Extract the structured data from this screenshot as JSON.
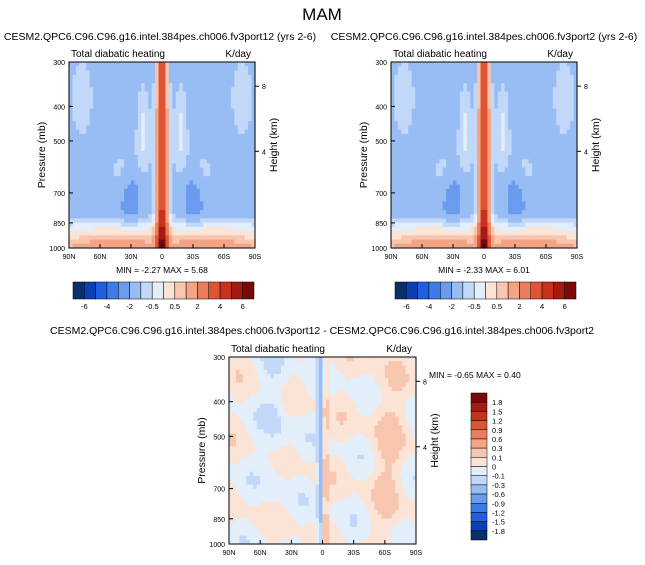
{
  "page": {
    "title": "MAM"
  },
  "colors": {
    "frame": "#000000",
    "ramp_full": [
      "#08306b",
      "#0d3fb4",
      "#1f5fe0",
      "#3d7be8",
      "#6a9bee",
      "#98bcf4",
      "#c2d8f8",
      "#e3eefb",
      "#fbe3d6",
      "#f8c6ae",
      "#f3a485",
      "#ec7d5c",
      "#e05436",
      "#c8321d",
      "#a51b12",
      "#7a0a0a"
    ],
    "ramp_diff": [
      "#08306b",
      "#0d3fb4",
      "#1f5fe0",
      "#3d7be8",
      "#6a9bee",
      "#98bcf4",
      "#c2d8f8",
      "#e3eefb",
      "#fbe3d6",
      "#f8c6ae",
      "#f3a485",
      "#ec7d5c",
      "#e05436",
      "#c8321d",
      "#a51b12",
      "#7a0a0a"
    ]
  },
  "chart_data": [
    {
      "type": "heatmap",
      "id": "panel1",
      "title": "CESM2.QPC6.C96.C96.g16.intel.384pes.ch006.fv3port12 (yrs 2-6)",
      "left_annotation": "Total diabatic heating",
      "right_annotation": "K/day",
      "xlabel": "",
      "ylabel": "Pressure (mb)",
      "right_ylabel": "Height (km)",
      "x_ticks": [
        "90N",
        "60N",
        "30N",
        "0",
        "30S",
        "60S",
        "90S"
      ],
      "y_ticks": [
        "300",
        "400",
        "500",
        "700",
        "850",
        "1000"
      ],
      "height_ticks": [
        "8",
        "4"
      ],
      "stats": {
        "min_label": "MIN =",
        "min": "-2.27",
        "max_label": "MAX =",
        "max": "5.68"
      },
      "colorbar_labels": [
        "-6",
        "-4",
        "-2",
        "-0.5",
        "0.5",
        "2",
        "4",
        "6"
      ],
      "colorbar_levels": [
        -6,
        -5,
        -4,
        -3,
        -2,
        -1,
        -0.5,
        0,
        0.5,
        1,
        2,
        3,
        4,
        5,
        6
      ],
      "ylim": [
        1000,
        300
      ]
    },
    {
      "type": "heatmap",
      "id": "panel2",
      "title": "CESM2.QPC6.C96.C96.g16.intel.384pes.ch006.fv3port2 (yrs 2-6)",
      "left_annotation": "Total diabatic heating",
      "right_annotation": "K/day",
      "xlabel": "",
      "ylabel": "Pressure (mb)",
      "right_ylabel": "Height (km)",
      "x_ticks": [
        "90N",
        "60N",
        "30N",
        "0",
        "30S",
        "60S",
        "90S"
      ],
      "y_ticks": [
        "300",
        "400",
        "500",
        "700",
        "850",
        "1000"
      ],
      "height_ticks": [
        "8",
        "4"
      ],
      "stats": {
        "min_label": "MIN =",
        "min": "-2.33",
        "max_label": "MAX =",
        "max": "6.01"
      },
      "colorbar_labels": [
        "-6",
        "-4",
        "-2",
        "-0.5",
        "0.5",
        "2",
        "4",
        "6"
      ],
      "colorbar_levels": [
        -6,
        -5,
        -4,
        -3,
        -2,
        -1,
        -0.5,
        0,
        0.5,
        1,
        2,
        3,
        4,
        5,
        6
      ],
      "ylim": [
        1000,
        300
      ]
    },
    {
      "type": "heatmap",
      "id": "panel3",
      "title": "CESM2.QPC6.C96.C96.g16.intel.384pes.ch006.fv3port12 - CESM2.QPC6.C96.C96.g16.intel.384pes.ch006.fv3port2",
      "left_annotation": "Total diabatic heating",
      "right_annotation": "K/day",
      "xlabel": "",
      "ylabel": "Pressure (mb)",
      "right_ylabel": "Height (km)",
      "x_ticks": [
        "90N",
        "60N",
        "30N",
        "0",
        "30S",
        "60S",
        "90S"
      ],
      "y_ticks": [
        "300",
        "400",
        "500",
        "700",
        "850",
        "1000"
      ],
      "height_ticks": [
        "8",
        "4"
      ],
      "stats": {
        "min_label": "MIN =",
        "min": "-0.65",
        "max_label": "MAX =",
        "max": "0.40"
      },
      "colorbar_labels": [
        "1.8",
        "1.5",
        "1.2",
        "0.9",
        "0.6",
        "0.3",
        "0.1",
        "0",
        "-0.1",
        "-0.3",
        "-0.6",
        "-0.9",
        "-1.2",
        "-1.5",
        "-1.8"
      ],
      "colorbar_levels": [
        -1.8,
        -1.5,
        -1.2,
        -0.9,
        -0.6,
        -0.3,
        -0.1,
        0,
        0.1,
        0.3,
        0.6,
        0.9,
        1.2,
        1.5,
        1.8
      ],
      "ylim": [
        1000,
        300
      ]
    }
  ]
}
